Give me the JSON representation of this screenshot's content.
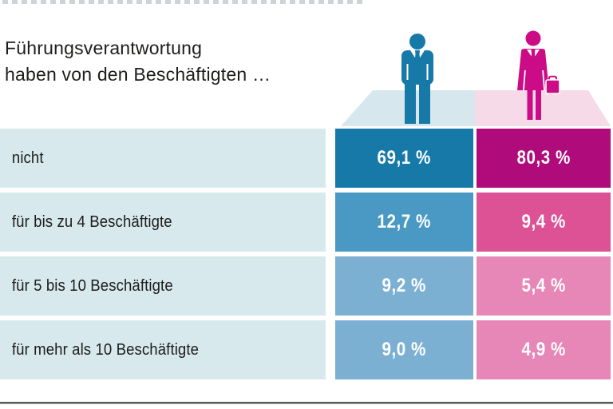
{
  "header": {
    "title_line1": "Führungsverantwortung",
    "title_line2": "haben von den Beschäftigten …"
  },
  "icons": {
    "male": "male-businessman-pictogram",
    "female": "female-businesswoman-with-briefcase-pictogram"
  },
  "colors": {
    "text": "#1d1d1b",
    "value_text": "#ffffff",
    "label_bg": "#d8e9ee",
    "male_icon": "#1779a8",
    "female_icon": "#cb0c86",
    "platform_male": "#d6e8ee",
    "platform_female": "#f7dae8",
    "men_cells": [
      "#1779a8",
      "#4a99c4",
      "#7cb0d3",
      "#7cb0d3"
    ],
    "women_cells": [
      "#b00b7b",
      "#dc5295",
      "#e787b7",
      "#e787b7"
    ]
  },
  "rows": [
    {
      "label": "nicht",
      "men": "69,1 %",
      "women": "80,3 %"
    },
    {
      "label": "für bis zu 4 Beschäftigte",
      "men": "12,7 %",
      "women": "9,4 %"
    },
    {
      "label": "für 5 bis 10 Beschäftigte",
      "men": "9,2 %",
      "women": "5,4 %"
    },
    {
      "label": "für mehr als 10 Beschäftigte",
      "men": "9,0 %",
      "women": "4,9 %"
    }
  ],
  "chart_data": {
    "type": "table",
    "title": "Führungsverantwortung haben von den Beschäftigten …",
    "categories": [
      "nicht",
      "für bis zu 4 Beschäftigte",
      "für 5 bis 10 Beschäftigte",
      "für mehr als 10 Beschäftigte"
    ],
    "series": [
      {
        "name": "male",
        "values": [
          69.1,
          12.7,
          9.2,
          9.0
        ]
      },
      {
        "name": "female",
        "values": [
          80.3,
          9.4,
          5.4,
          4.9
        ]
      }
    ],
    "value_unit": "%",
    "decimal_separator": ",",
    "legend_position": "top (pictograms above value columns)"
  }
}
